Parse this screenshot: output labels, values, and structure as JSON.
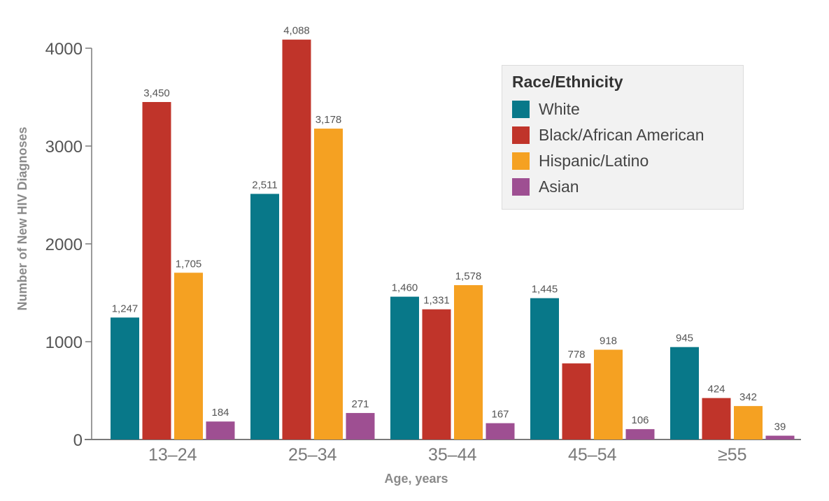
{
  "chart_data": {
    "type": "bar",
    "title": "",
    "xlabel": "Age, years",
    "ylabel": "Number of New HIV Diagnoses",
    "ylim": [
      0,
      4000
    ],
    "yticks": [
      0,
      1000,
      2000,
      3000,
      4000
    ],
    "ytick_labels": [
      "0",
      "1000",
      "2000",
      "3000",
      "4000"
    ],
    "grid": false,
    "categories": [
      "13–24",
      "25–34",
      "35–44",
      "45–54",
      "≥55"
    ],
    "series": [
      {
        "name": "White",
        "color": "#087889",
        "values": [
          1247,
          2511,
          1460,
          1445,
          945
        ],
        "labels": [
          "1,247",
          "2,511",
          "1,460",
          "1,445",
          "945"
        ]
      },
      {
        "name": "Black/African American",
        "color": "#c0342a",
        "values": [
          3450,
          4088,
          1331,
          778,
          424
        ],
        "labels": [
          "3,450",
          "4,088",
          "1,331",
          "778",
          "424"
        ]
      },
      {
        "name": "Hispanic/Latino",
        "color": "#f5a122",
        "values": [
          1705,
          3178,
          1578,
          918,
          342
        ],
        "labels": [
          "1,705",
          "3,178",
          "1,578",
          "918",
          "342"
        ]
      },
      {
        "name": "Asian",
        "color": "#9e4f92",
        "values": [
          184,
          271,
          167,
          106,
          39
        ],
        "labels": [
          "184",
          "271",
          "167",
          "106",
          "39"
        ]
      }
    ],
    "legend": {
      "title": "Race/Ethnicity",
      "placement": "top-right"
    }
  }
}
